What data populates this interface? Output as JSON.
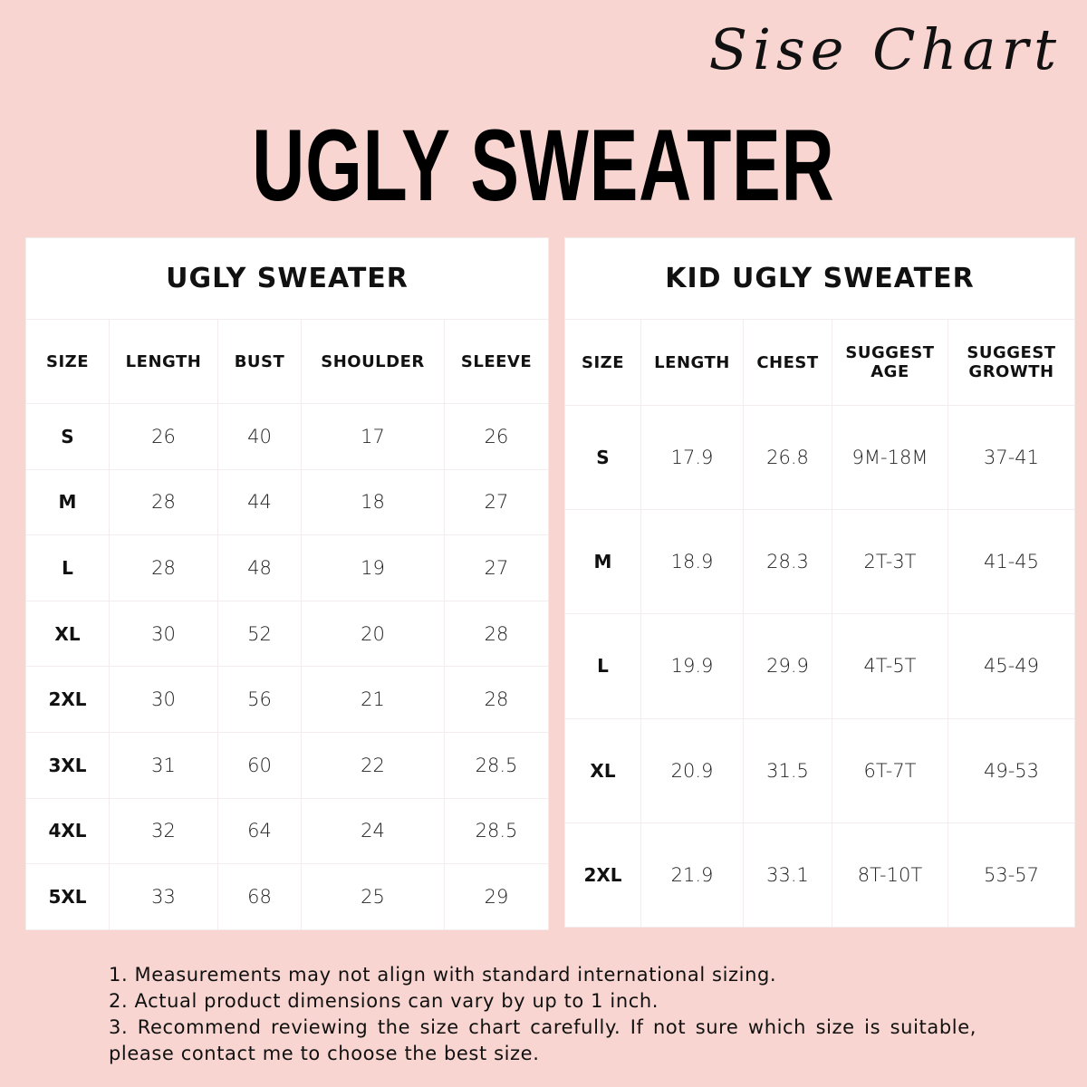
{
  "script_title": "Sise Chart",
  "main_title": "UGLY SWEATER",
  "adult_table": {
    "title": "UGLY SWEATER",
    "headers": [
      "SIZE",
      "LENGTH",
      "BUST",
      "SHOULDER",
      "SLEEVE"
    ],
    "rows": [
      [
        "S",
        "26",
        "40",
        "17",
        "26"
      ],
      [
        "M",
        "28",
        "44",
        "18",
        "27"
      ],
      [
        "L",
        "28",
        "48",
        "19",
        "27"
      ],
      [
        "XL",
        "30",
        "52",
        "20",
        "28"
      ],
      [
        "2XL",
        "30",
        "56",
        "21",
        "28"
      ],
      [
        "3XL",
        "31",
        "60",
        "22",
        "28.5"
      ],
      [
        "4XL",
        "32",
        "64",
        "24",
        "28.5"
      ],
      [
        "5XL",
        "33",
        "68",
        "25",
        "29"
      ]
    ]
  },
  "kid_table": {
    "title": "KID UGLY SWEATER",
    "headers": [
      "SIZE",
      "LENGTH",
      "CHEST",
      "SUGGEST AGE",
      "SUGGEST GROWTH"
    ],
    "rows": [
      [
        "S",
        "17.9",
        "26.8",
        "9M-18M",
        "37-41"
      ],
      [
        "M",
        "18.9",
        "28.3",
        "2T-3T",
        "41-45"
      ],
      [
        "L",
        "19.9",
        "29.9",
        "4T-5T",
        "45-49"
      ],
      [
        "XL",
        "20.9",
        "31.5",
        "6T-7T",
        "49-53"
      ],
      [
        "2XL",
        "21.9",
        "33.1",
        "8T-10T",
        "53-57"
      ]
    ]
  },
  "notes": [
    "1. Measurements may not align with standard international sizing.",
    "2. Actual product dimensions can vary by up to 1 inch.",
    "3. Recommend reviewing the size chart carefully. If not sure which size is suitable, please contact me to choose the best size."
  ],
  "colors": {
    "background": "#f8d5d0",
    "table": "#ffffff",
    "text": "#111111"
  }
}
